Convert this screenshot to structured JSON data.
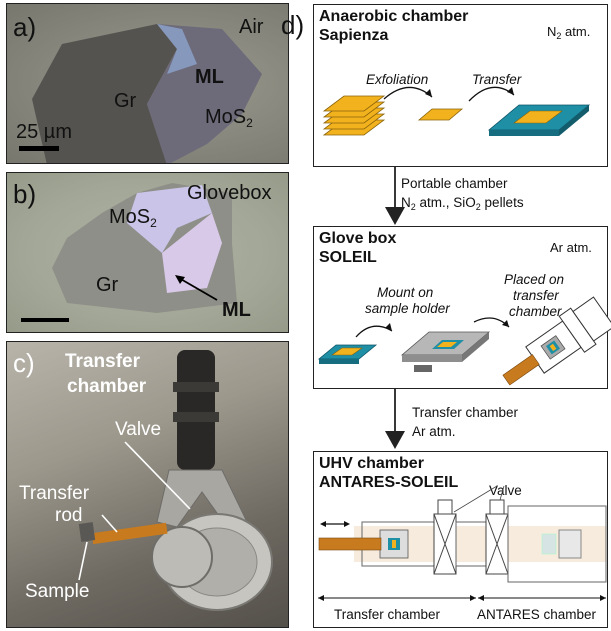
{
  "panel_a": {
    "letter": "a)",
    "environment": "Air",
    "labels": {
      "graphite": "Gr",
      "monolayer": "ML",
      "mos2_base": "MoS",
      "mos2_sub": "2"
    },
    "scale_bar": "25 µm"
  },
  "panel_b": {
    "letter": "b)",
    "environment": "Glovebox",
    "labels": {
      "mos2_base": "MoS",
      "mos2_sub": "2",
      "graphite": "Gr",
      "monolayer": "ML"
    }
  },
  "panel_c": {
    "letter": "c)",
    "title_line1": "Transfer",
    "title_line2": "chamber",
    "labels": {
      "valve": "Valve",
      "rod_line1": "Transfer",
      "rod_line2": "rod",
      "sample": "Sample"
    }
  },
  "panel_d": {
    "letter": "d)",
    "box1": {
      "title_line1": "Anaerobic chamber",
      "title_line2": "Sapienza",
      "gas_base": "N",
      "gas_sub": "2",
      "gas_rest": " atm.",
      "step1": "Exfoliation",
      "step2": "Transfer"
    },
    "arrow1": {
      "line1": "Portable chamber",
      "line2_base": "N",
      "line2_sub": "2",
      "line2_rest": " atm., SiO",
      "line2_sub2": "2",
      "line2_end": " pellets"
    },
    "box2": {
      "title_line1": "Glove box",
      "title_line2": "SOLEIL",
      "gas": "Ar atm.",
      "step1_line1": "Mount on",
      "step1_line2": "sample holder",
      "step2_line1": "Placed on",
      "step2_line2": "transfer",
      "step2_line3": "chamber"
    },
    "arrow2": {
      "line1": "Transfer chamber",
      "line2": "Ar atm."
    },
    "box3": {
      "title_line1": "UHV chamber",
      "title_line2": "ANTARES-SOLEIL",
      "valve": "Valve",
      "section1": "Transfer chamber",
      "section2": "ANTARES chamber"
    }
  },
  "colors": {
    "flake_yellow": "#f2b21e",
    "substrate_teal": "#1f8fa6",
    "rod_orange": "#c87a1e"
  }
}
